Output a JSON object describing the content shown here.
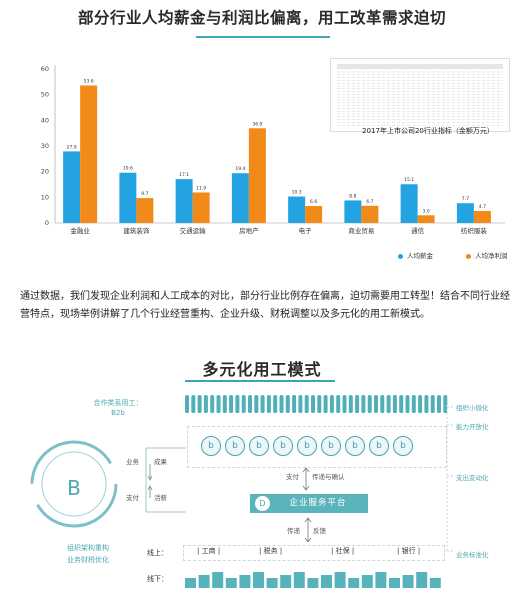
{
  "top": {
    "title": "部分行业人均薪金与利润比偏离，用工改革需求迫切"
  },
  "chart_data": {
    "type": "bar",
    "categories": [
      "金融业",
      "建筑装饰",
      "交通运输",
      "房地产",
      "电子",
      "商业贸易",
      "通信",
      "纺织服装"
    ],
    "series": [
      {
        "name": "人均薪金",
        "values": [
          27.9,
          19.6,
          17.1,
          19.4,
          10.3,
          8.8,
          15.1,
          7.7
        ],
        "color": "#24a3e3"
      },
      {
        "name": "人均净利润",
        "values": [
          53.6,
          9.7,
          11.9,
          36.9,
          6.6,
          6.7,
          3.0,
          4.7
        ],
        "color": "#f28a1a"
      }
    ],
    "ylim": [
      0,
      60
    ],
    "yticks": [
      0,
      10,
      20,
      30,
      40,
      50,
      60
    ],
    "grid": false,
    "legend": "bottom-right"
  },
  "table_caption": "2017年上市公司20行业指标（金额万元）",
  "paragraph": "通过数据，我们发现企业利润和人工成本的对比，部分行业比例存在偏离，迫切需要用工转型！结合不同行业经营特点，现场举例讲解了几个行业经营重构、企业升级、财税调整以及多元化的用工新模式。",
  "diagram": {
    "title": "多元化用工模式",
    "wide_label_line1": "合作类系用工：",
    "wide_label_line2": "B2b",
    "b_letter": "B",
    "business_label": "业务",
    "results_label": "成果",
    "payment_label": "支付",
    "fees_label": "活薪",
    "pay_confirm_label": "支付",
    "confirm_label": "传递与确认",
    "platform": "企业服务平台",
    "d_letter": "D",
    "pass_label": "传递",
    "feedback_label": "反馈",
    "left_caption_1": "组织架构重构",
    "left_caption_2": "业务财税优化",
    "online_label": "线上：",
    "offline_label": "线下：",
    "online_items": [
      "工商",
      "税务",
      "社保",
      "银行"
    ],
    "b_circles": [
      "b",
      "b",
      "b",
      "b",
      "b",
      "b",
      "b",
      "b",
      "b"
    ],
    "right_labels": [
      "组织小微化",
      "能力开放化",
      "支出变动化",
      "业务标准化"
    ]
  }
}
